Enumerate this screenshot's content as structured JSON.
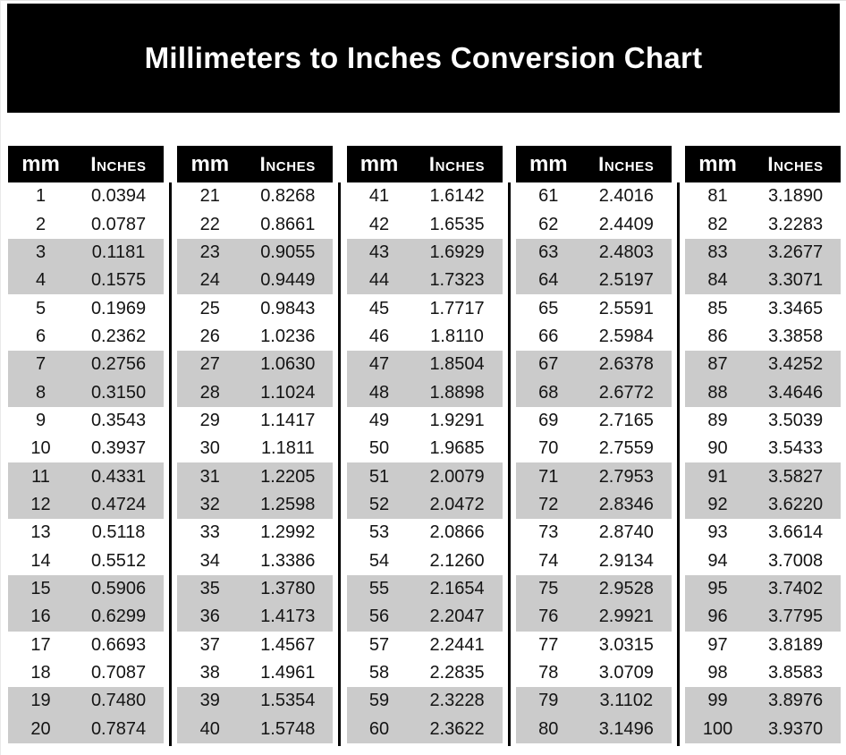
{
  "title": "Millimeters to Inches Conversion Chart",
  "column_headers": {
    "mm": "mm",
    "inches": "Inches"
  },
  "colors": {
    "page-bg": "#ffffff",
    "banner-bg": "#000000",
    "banner-text": "#ffffff",
    "header-bg": "#000000",
    "header-text": "#ffffff",
    "divider": "#000000",
    "shaded-row": "#cbcbcb",
    "cell-text": "#141414"
  },
  "chart_data": {
    "type": "table",
    "title": "Millimeters to Inches Conversion Chart",
    "columns": [
      "mm",
      "Inches"
    ],
    "groups": [
      {
        "rows": [
          [
            "1",
            "0.0394"
          ],
          [
            "2",
            "0.0787"
          ],
          [
            "3",
            "0.1181"
          ],
          [
            "4",
            "0.1575"
          ],
          [
            "5",
            "0.1969"
          ],
          [
            "6",
            "0.2362"
          ],
          [
            "7",
            "0.2756"
          ],
          [
            "8",
            "0.3150"
          ],
          [
            "9",
            "0.3543"
          ],
          [
            "10",
            "0.3937"
          ],
          [
            "11",
            "0.4331"
          ],
          [
            "12",
            "0.4724"
          ],
          [
            "13",
            "0.5118"
          ],
          [
            "14",
            "0.5512"
          ],
          [
            "15",
            "0.5906"
          ],
          [
            "16",
            "0.6299"
          ],
          [
            "17",
            "0.6693"
          ],
          [
            "18",
            "0.7087"
          ],
          [
            "19",
            "0.7480"
          ],
          [
            "20",
            "0.7874"
          ]
        ]
      },
      {
        "rows": [
          [
            "21",
            "0.8268"
          ],
          [
            "22",
            "0.8661"
          ],
          [
            "23",
            "0.9055"
          ],
          [
            "24",
            "0.9449"
          ],
          [
            "25",
            "0.9843"
          ],
          [
            "26",
            "1.0236"
          ],
          [
            "27",
            "1.0630"
          ],
          [
            "28",
            "1.1024"
          ],
          [
            "29",
            "1.1417"
          ],
          [
            "30",
            "1.1811"
          ],
          [
            "31",
            "1.2205"
          ],
          [
            "32",
            "1.2598"
          ],
          [
            "33",
            "1.2992"
          ],
          [
            "34",
            "1.3386"
          ],
          [
            "35",
            "1.3780"
          ],
          [
            "36",
            "1.4173"
          ],
          [
            "37",
            "1.4567"
          ],
          [
            "38",
            "1.4961"
          ],
          [
            "39",
            "1.5354"
          ],
          [
            "40",
            "1.5748"
          ]
        ]
      },
      {
        "rows": [
          [
            "41",
            "1.6142"
          ],
          [
            "42",
            "1.6535"
          ],
          [
            "43",
            "1.6929"
          ],
          [
            "44",
            "1.7323"
          ],
          [
            "45",
            "1.7717"
          ],
          [
            "46",
            "1.8110"
          ],
          [
            "47",
            "1.8504"
          ],
          [
            "48",
            "1.8898"
          ],
          [
            "49",
            "1.9291"
          ],
          [
            "50",
            "1.9685"
          ],
          [
            "51",
            "2.0079"
          ],
          [
            "52",
            "2.0472"
          ],
          [
            "53",
            "2.0866"
          ],
          [
            "54",
            "2.1260"
          ],
          [
            "55",
            "2.1654"
          ],
          [
            "56",
            "2.2047"
          ],
          [
            "57",
            "2.2441"
          ],
          [
            "58",
            "2.2835"
          ],
          [
            "59",
            "2.3228"
          ],
          [
            "60",
            "2.3622"
          ]
        ]
      },
      {
        "rows": [
          [
            "61",
            "2.4016"
          ],
          [
            "62",
            "2.4409"
          ],
          [
            "63",
            "2.4803"
          ],
          [
            "64",
            "2.5197"
          ],
          [
            "65",
            "2.5591"
          ],
          [
            "66",
            "2.5984"
          ],
          [
            "67",
            "2.6378"
          ],
          [
            "68",
            "2.6772"
          ],
          [
            "69",
            "2.7165"
          ],
          [
            "70",
            "2.7559"
          ],
          [
            "71",
            "2.7953"
          ],
          [
            "72",
            "2.8346"
          ],
          [
            "73",
            "2.8740"
          ],
          [
            "74",
            "2.9134"
          ],
          [
            "75",
            "2.9528"
          ],
          [
            "76",
            "2.9921"
          ],
          [
            "77",
            "3.0315"
          ],
          [
            "78",
            "3.0709"
          ],
          [
            "79",
            "3.1102"
          ],
          [
            "80",
            "3.1496"
          ]
        ]
      },
      {
        "rows": [
          [
            "81",
            "3.1890"
          ],
          [
            "82",
            "3.2283"
          ],
          [
            "83",
            "3.2677"
          ],
          [
            "84",
            "3.3071"
          ],
          [
            "85",
            "3.3465"
          ],
          [
            "86",
            "3.3858"
          ],
          [
            "87",
            "3.4252"
          ],
          [
            "88",
            "3.4646"
          ],
          [
            "89",
            "3.5039"
          ],
          [
            "90",
            "3.5433"
          ],
          [
            "91",
            "3.5827"
          ],
          [
            "92",
            "3.6220"
          ],
          [
            "93",
            "3.6614"
          ],
          [
            "94",
            "3.7008"
          ],
          [
            "95",
            "3.7402"
          ],
          [
            "96",
            "3.7795"
          ],
          [
            "97",
            "3.8189"
          ],
          [
            "98",
            "3.8583"
          ],
          [
            "99",
            "3.8976"
          ],
          [
            "100",
            "3.9370"
          ]
        ]
      }
    ]
  }
}
